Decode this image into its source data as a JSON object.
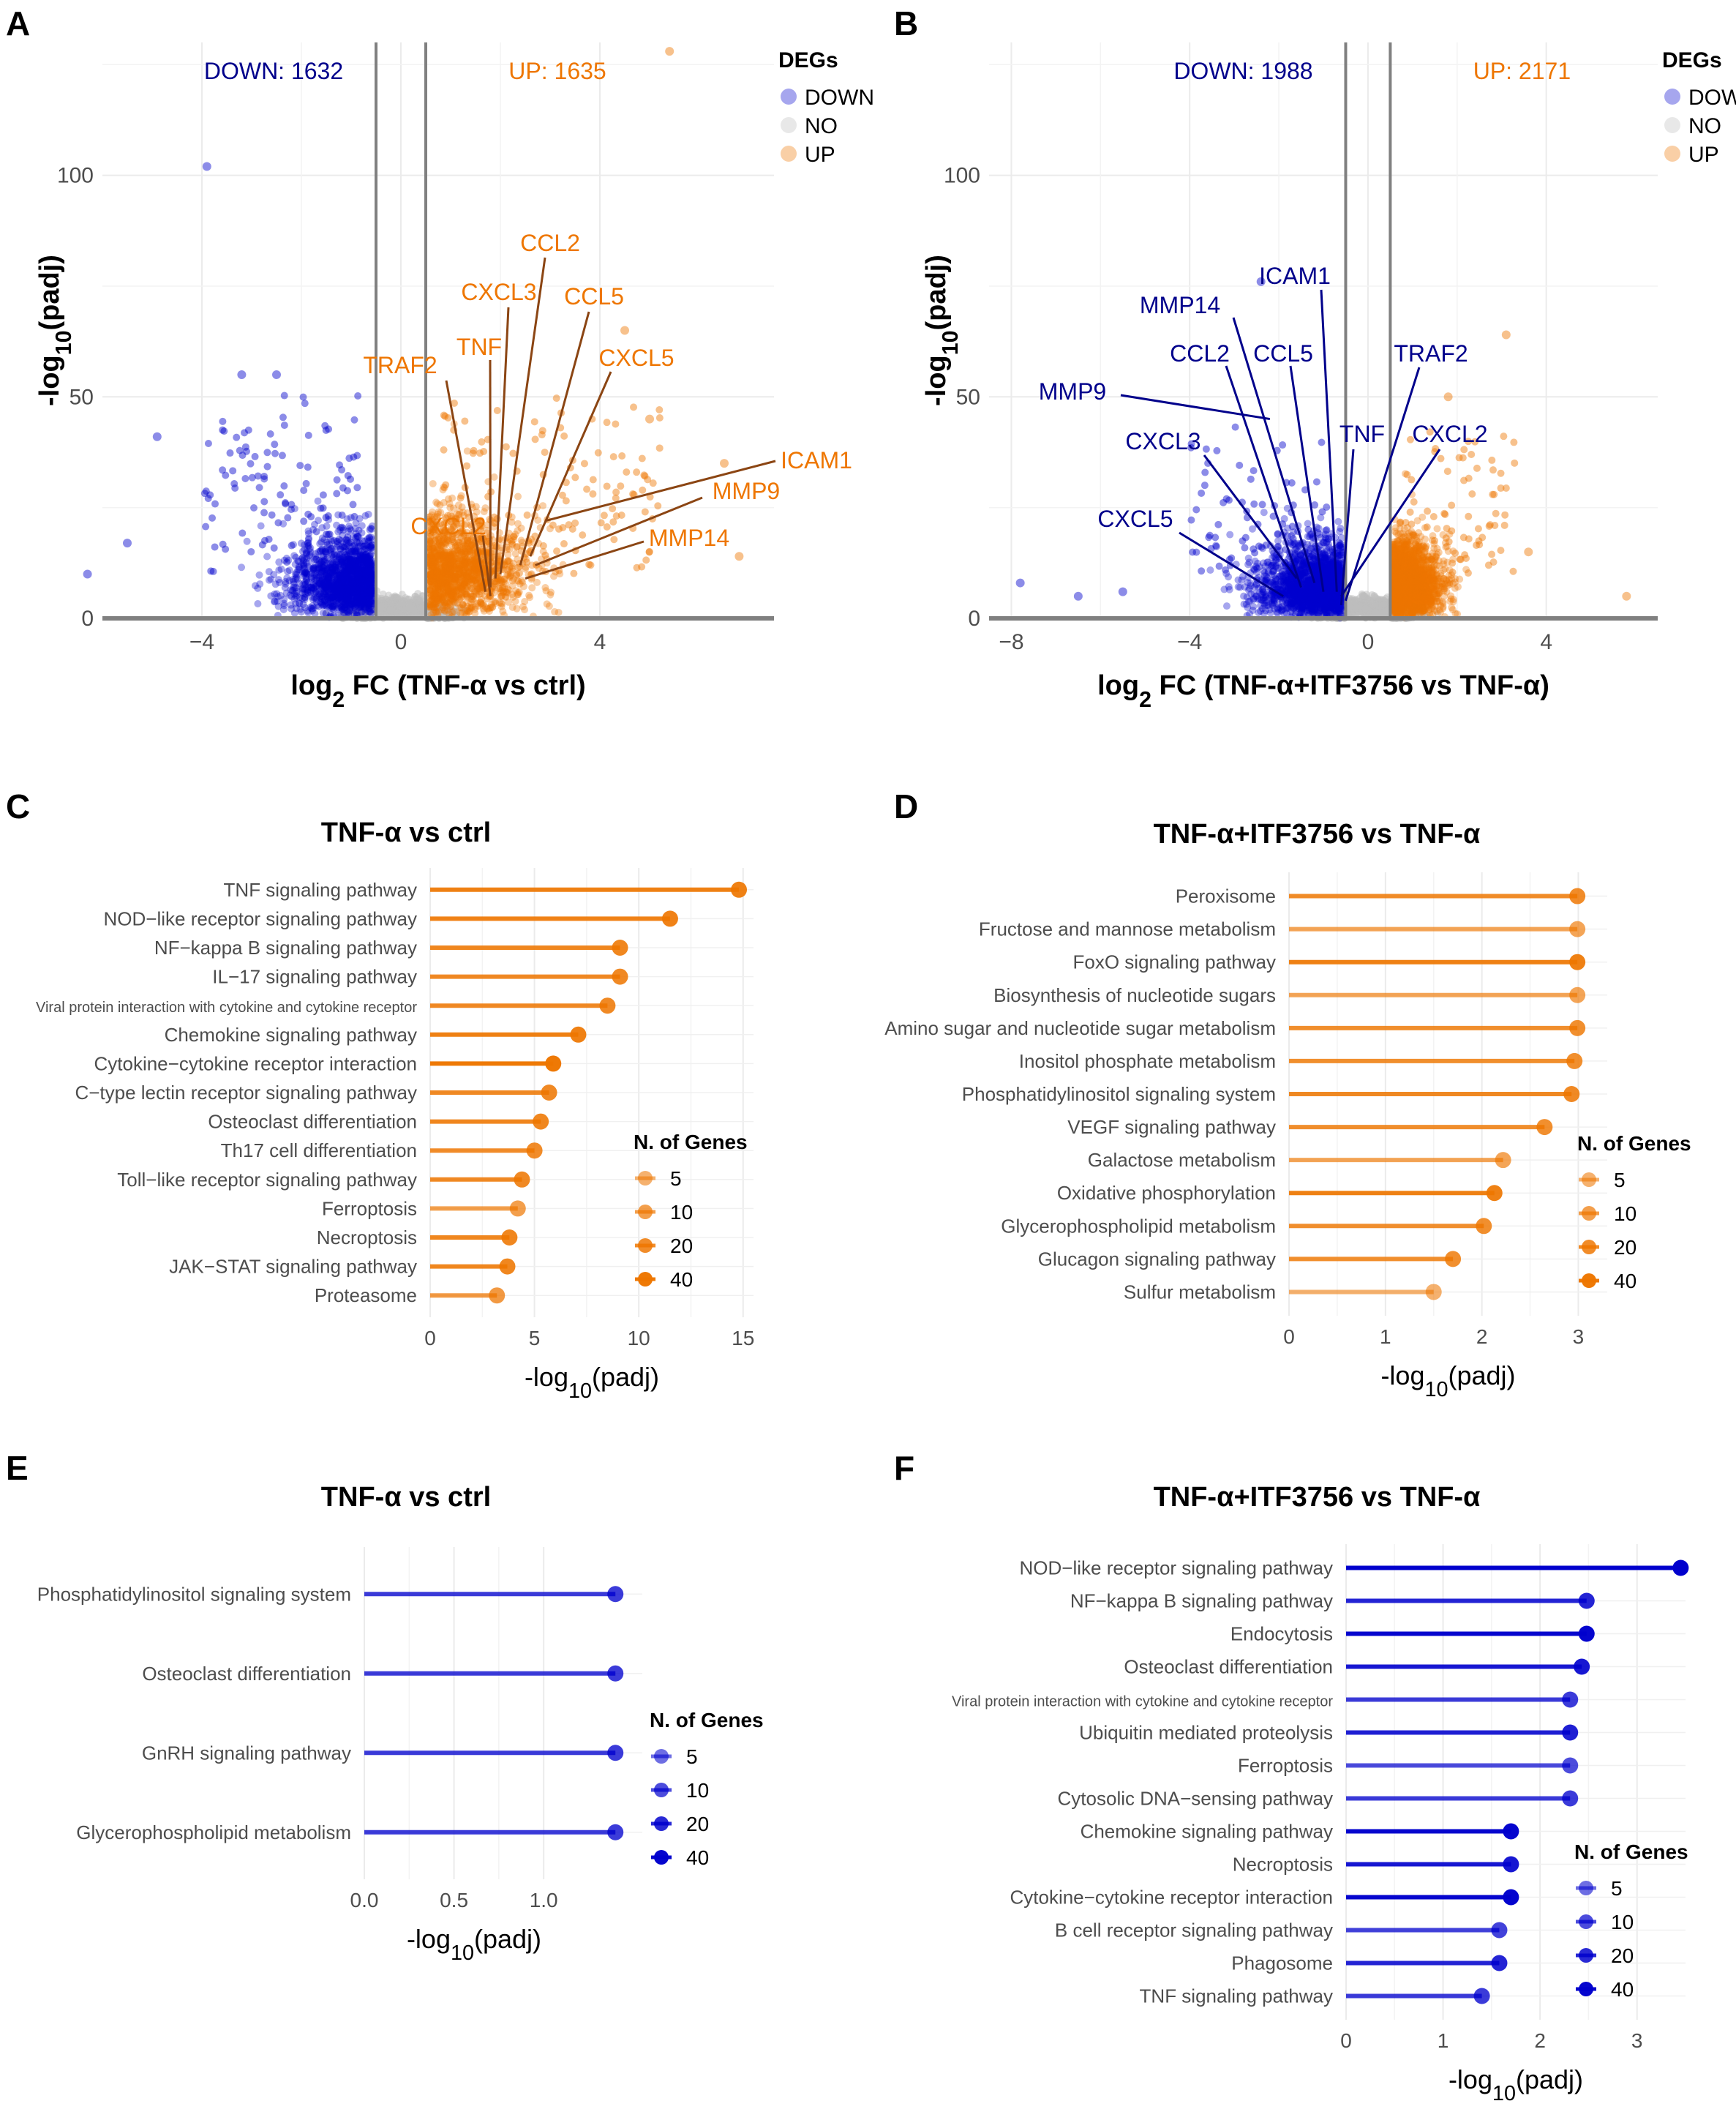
{
  "colors": {
    "down": "#0000cd",
    "up": "#ee7600",
    "no": "#bebebe",
    "up_label": "#ee7600",
    "down_label": "#00008b",
    "leader_up": "#8b4513",
    "grid": "#ebebeb",
    "axis_line": "#808080"
  },
  "chart_data": [
    {
      "panel": "A",
      "type": "scatter",
      "subtype": "volcano",
      "xlabel": "log2 FC (TNF-α vs ctrl)",
      "ylabel": "-log10(padj)",
      "xlim": [
        -6,
        7.5
      ],
      "ylim": [
        0,
        130
      ],
      "xticks": [
        -4,
        0,
        4
      ],
      "yticks": [
        0,
        50,
        100
      ],
      "thresholds": [
        -0.5,
        0.5
      ],
      "down_label": "DOWN: 1632",
      "up_label": "UP: 1635",
      "legend": {
        "title": "DEGs",
        "items": [
          "DOWN",
          "NO",
          "UP"
        ]
      },
      "labels": [
        {
          "text": "CCL2",
          "x": 2.0,
          "y": 10
        },
        {
          "text": "CXCL3",
          "x": 1.9,
          "y": 9
        },
        {
          "text": "CCL5",
          "x": 2.4,
          "y": 12
        },
        {
          "text": "TNF",
          "x": 1.8,
          "y": 7
        },
        {
          "text": "TRAF2",
          "x": 1.7,
          "y": 6
        },
        {
          "text": "CXCL5",
          "x": 2.6,
          "y": 14
        },
        {
          "text": "ICAM1",
          "x": 2.9,
          "y": 22
        },
        {
          "text": "MMP9",
          "x": 2.7,
          "y": 12
        },
        {
          "text": "MMP14",
          "x": 2.5,
          "y": 9
        },
        {
          "text": "CXCL2",
          "x": 1.8,
          "y": 5
        }
      ],
      "outliers": [
        {
          "x": -3.9,
          "y": 102,
          "deg": "DOWN"
        },
        {
          "x": 5.4,
          "y": 128,
          "deg": "UP"
        },
        {
          "x": -2.5,
          "y": 55,
          "deg": "DOWN"
        },
        {
          "x": -3.2,
          "y": 55,
          "deg": "DOWN"
        },
        {
          "x": -4.9,
          "y": 41,
          "deg": "DOWN"
        },
        {
          "x": -5.5,
          "y": 17,
          "deg": "DOWN"
        },
        {
          "x": -6.3,
          "y": 10,
          "deg": "DOWN"
        },
        {
          "x": 4.5,
          "y": 65,
          "deg": "UP"
        },
        {
          "x": 5.0,
          "y": 45,
          "deg": "UP"
        },
        {
          "x": 6.5,
          "y": 35,
          "deg": "UP"
        },
        {
          "x": 6.8,
          "y": 14,
          "deg": "UP"
        }
      ]
    },
    {
      "panel": "B",
      "type": "scatter",
      "subtype": "volcano",
      "xlabel": "log2 FC (TNF-α+ITF3756 vs TNF-α)",
      "ylabel": "-log10(padj)",
      "xlim": [
        -8.5,
        6.5
      ],
      "ylim": [
        0,
        130
      ],
      "xticks": [
        -8,
        -4,
        0,
        4
      ],
      "yticks": [
        0,
        50,
        100
      ],
      "thresholds": [
        -0.5,
        0.5
      ],
      "down_label": "DOWN: 1988",
      "up_label": "UP: 2171",
      "legend": {
        "title": "DEGs",
        "items": [
          "DOWN",
          "NO",
          "UP"
        ]
      },
      "labels": [
        {
          "text": "ICAM1",
          "x": -0.7,
          "y": 6
        },
        {
          "text": "MMP14",
          "x": -1.2,
          "y": 8
        },
        {
          "text": "CCL2",
          "x": -1.5,
          "y": 7
        },
        {
          "text": "CCL5",
          "x": -1.0,
          "y": 6
        },
        {
          "text": "TRAF2",
          "x": -0.5,
          "y": 4
        },
        {
          "text": "MMP9",
          "x": -2.2,
          "y": 45
        },
        {
          "text": "TNF",
          "x": -0.6,
          "y": 3
        },
        {
          "text": "CXCL2",
          "x": -0.6,
          "y": 5
        },
        {
          "text": "CXCL3",
          "x": -1.6,
          "y": 9
        },
        {
          "text": "CXCL5",
          "x": -1.9,
          "y": 5
        }
      ],
      "outliers": [
        {
          "x": -2.4,
          "y": 76,
          "deg": "DOWN"
        },
        {
          "x": -7.8,
          "y": 8,
          "deg": "DOWN"
        },
        {
          "x": -5.5,
          "y": 6,
          "deg": "DOWN"
        },
        {
          "x": -6.5,
          "y": 5,
          "deg": "DOWN"
        },
        {
          "x": 3.1,
          "y": 64,
          "deg": "UP"
        },
        {
          "x": 1.8,
          "y": 50,
          "deg": "UP"
        },
        {
          "x": 3.6,
          "y": 15,
          "deg": "UP"
        },
        {
          "x": 5.8,
          "y": 5,
          "deg": "UP"
        }
      ]
    },
    {
      "panel": "C",
      "type": "bar",
      "subtype": "lollipop",
      "title": "TNF-α vs ctrl",
      "xlabel": "-log10(padj)",
      "xlim": [
        0,
        15.5
      ],
      "xticks": [
        0,
        5,
        10,
        15
      ],
      "color": "orange",
      "legend": {
        "title": "N. of Genes",
        "items": [
          5,
          10,
          20,
          40
        ]
      },
      "categories": [
        "TNF signaling pathway",
        "NOD−like receptor signaling pathway",
        "NF−kappa B signaling pathway",
        "IL−17 signaling pathway",
        "Viral protein interaction with cytokine and cytokine receptor",
        "Chemokine signaling pathway",
        "Cytokine−cytokine receptor interaction",
        "C−type lectin receptor signaling pathway",
        "Osteoclast differentiation",
        "Th17 cell differentiation",
        "Toll−like receptor signaling pathway",
        "Ferroptosis",
        "Necroptosis",
        "JAK−STAT signaling pathway",
        "Proteasome"
      ],
      "values": [
        14.8,
        11.5,
        9.1,
        9.1,
        8.5,
        7.1,
        5.9,
        5.7,
        5.3,
        5.0,
        4.4,
        4.2,
        3.8,
        3.7,
        3.2
      ],
      "genes": [
        30,
        28,
        24,
        22,
        22,
        30,
        40,
        22,
        24,
        20,
        22,
        10,
        24,
        24,
        12
      ]
    },
    {
      "panel": "D",
      "type": "bar",
      "subtype": "lollipop",
      "title": "TNF-α+ITF3756 vs TNF-α",
      "xlabel": "-log10(padj)",
      "xlim": [
        0,
        3.3
      ],
      "xticks": [
        0,
        1,
        2,
        3
      ],
      "color": "orange",
      "legend": {
        "title": "N. of Genes",
        "items": [
          5,
          10,
          20,
          40
        ]
      },
      "categories": [
        "Peroxisome",
        "Fructose and mannose metabolism",
        "FoxO signaling pathway",
        "Biosynthesis of nucleotide sugars",
        "Amino sugar and nucleotide sugar metabolism",
        "Inositol phosphate metabolism",
        "Phosphatidylinositol signaling system",
        "VEGF signaling pathway",
        "Galactose metabolism",
        "Oxidative phosphorylation",
        "Glycerophospholipid metabolism",
        "Glucagon signaling pathway",
        "Sulfur metabolism"
      ],
      "values": [
        2.99,
        2.99,
        2.99,
        2.99,
        2.99,
        2.96,
        2.93,
        2.65,
        2.22,
        2.13,
        2.02,
        1.7,
        1.5
      ],
      "genes": [
        20,
        8,
        30,
        8,
        18,
        18,
        22,
        18,
        8,
        30,
        18,
        18,
        5
      ]
    },
    {
      "panel": "E",
      "type": "bar",
      "subtype": "lollipop",
      "title": "TNF-α vs ctrl",
      "xlabel": "-log10(padj)",
      "xlim": [
        0,
        1.55
      ],
      "xticks": [
        0.0,
        0.5,
        1.0
      ],
      "xtick_labels": [
        "0.0",
        "0.5",
        "1.0"
      ],
      "color": "blue",
      "legend": {
        "title": "N. of Genes",
        "items": [
          5,
          10,
          20,
          40
        ]
      },
      "categories": [
        "Phosphatidylinositol signaling system",
        "Osteoclast differentiation",
        "GnRH signaling pathway",
        "Glycerophospholipid metabolism"
      ],
      "values": [
        1.4,
        1.4,
        1.4,
        1.4
      ],
      "genes": [
        14,
        14,
        14,
        14
      ]
    },
    {
      "panel": "F",
      "type": "bar",
      "subtype": "lollipop",
      "title": "TNF-α+ITF3756 vs TNF-α",
      "xlabel": "-log10(padj)",
      "xlim": [
        0,
        3.5
      ],
      "xticks": [
        0,
        1,
        2,
        3
      ],
      "color": "blue",
      "legend": {
        "title": "N. of Genes",
        "items": [
          5,
          10,
          20,
          40
        ]
      },
      "categories": [
        "NOD−like receptor signaling pathway",
        "NF−kappa B signaling pathway",
        "Endocytosis",
        "Osteoclast differentiation",
        "Viral protein interaction with cytokine and cytokine receptor",
        "Ubiquitin mediated proteolysis",
        "Ferroptosis",
        "Cytosolic DNA−sensing pathway",
        "Chemokine signaling pathway",
        "Necroptosis",
        "Cytokine−cytokine receptor interaction",
        "B cell receptor signaling pathway",
        "Phagosome",
        "TNF signaling pathway"
      ],
      "values": [
        3.45,
        2.48,
        2.48,
        2.43,
        2.31,
        2.31,
        2.31,
        2.31,
        1.7,
        1.7,
        1.7,
        1.58,
        1.58,
        1.4
      ],
      "genes": [
        45,
        22,
        40,
        28,
        14,
        24,
        10,
        14,
        40,
        28,
        40,
        12,
        22,
        14
      ]
    }
  ]
}
